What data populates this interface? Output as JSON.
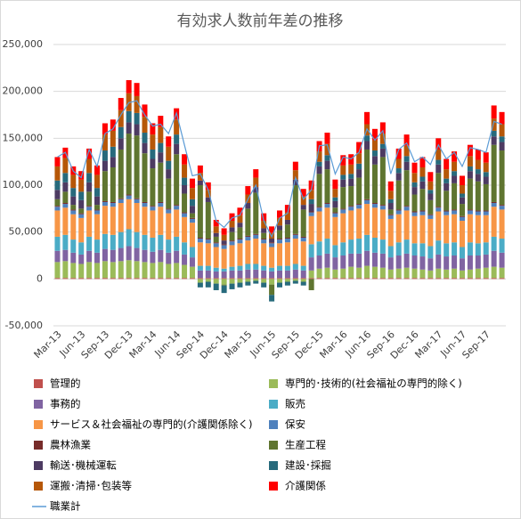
{
  "chart_data": {
    "type": "stacked-bar",
    "title": "有効求人数前年差の推移",
    "categories": [
      "Mar-13",
      null,
      null,
      "Jun-13",
      null,
      null,
      "Sep-13",
      null,
      null,
      "Dec-13",
      null,
      null,
      "Mar-14",
      null,
      null,
      "Jun-14",
      null,
      null,
      "Sep-14",
      null,
      null,
      "Dec-14",
      null,
      null,
      "Mar-15",
      null,
      null,
      "Jun-15",
      null,
      null,
      "Sep-15",
      null,
      null,
      "Dec-15",
      null,
      null,
      "Mar-16",
      null,
      null,
      "Jun-16",
      null,
      null,
      "Sep-16",
      null,
      null,
      "Dec-16",
      null,
      null,
      "Mar-17",
      null,
      null,
      "Jun-17",
      null,
      null,
      "Sep-17",
      null,
      null
    ],
    "ylim": [
      -50000,
      250000
    ],
    "yticks": [
      {
        "value": -50000,
        "label": "-50,000"
      },
      0,
      {
        "value": 50000,
        "label": "50,000"
      },
      {
        "value": 100000,
        "label": "100,000"
      },
      {
        "value": 150000,
        "label": "150,000"
      },
      {
        "value": 200000,
        "label": "200,000"
      },
      {
        "value": 250000,
        "label": "250,000"
      }
    ],
    "grid": true,
    "series": [
      {
        "name": "管理的",
        "color": "#c0504d",
        "values": [
          1000,
          1000,
          1000,
          1000,
          1000,
          1000,
          1000,
          1000,
          1000,
          1000,
          1000,
          1000,
          1000,
          1000,
          1000,
          1000,
          1000,
          1000,
          1000,
          1000,
          1000,
          1000,
          1000,
          1000,
          1000,
          1000,
          1000,
          1000,
          1000,
          1000,
          1000,
          1000,
          1000,
          1000,
          1000,
          1000,
          1000,
          1000,
          1000,
          1000,
          1000,
          1000,
          1000,
          1000,
          1000,
          1000,
          1000,
          1000,
          1000,
          1000,
          1000,
          1000,
          1000,
          1000,
          1000,
          1000,
          1000
        ]
      },
      {
        "name": "専門的･技術的(社会福祉の専門的除く)",
        "color": "#9bbb59",
        "values": [
          17000,
          18000,
          16000,
          15000,
          17000,
          16000,
          18000,
          17000,
          18000,
          19000,
          18000,
          17000,
          16000,
          17000,
          15000,
          16000,
          14000,
          12000,
          -4000,
          -3000,
          -5000,
          -6000,
          -5000,
          -4000,
          -3000,
          -2000,
          -4000,
          -6000,
          -4000,
          -3000,
          -2000,
          -3000,
          8000,
          10000,
          11000,
          9000,
          10000,
          12000,
          11000,
          13000,
          12000,
          11000,
          9000,
          10000,
          11000,
          10000,
          9000,
          8000,
          10000,
          9000,
          10000,
          8000,
          9000,
          10000,
          11000,
          12000,
          11000
        ]
      },
      {
        "name": "事務的",
        "color": "#8064a2",
        "values": [
          12000,
          12000,
          11000,
          10000,
          12000,
          11000,
          13000,
          13000,
          14000,
          15000,
          14000,
          13000,
          12000,
          13000,
          12000,
          13000,
          11000,
          10000,
          8000,
          8000,
          7000,
          7000,
          8000,
          8000,
          9000,
          9000,
          8000,
          7000,
          8000,
          8000,
          9000,
          8000,
          14000,
          14000,
          15000,
          13000,
          14000,
          14000,
          15000,
          16000,
          15000,
          15000,
          13000,
          14000,
          15000,
          14000,
          14000,
          13000,
          15000,
          14000,
          14000,
          13000,
          15000,
          14000,
          14000,
          17000,
          16000
        ]
      },
      {
        "name": "販売",
        "color": "#4bacc6",
        "values": [
          15000,
          16000,
          14000,
          13000,
          15000,
          14000,
          16000,
          16000,
          17000,
          18000,
          17000,
          16000,
          15000,
          16000,
          14000,
          15000,
          13000,
          11000,
          5000,
          5000,
          4000,
          3000,
          4000,
          5000,
          6000,
          6000,
          5000,
          4000,
          5000,
          5000,
          6000,
          5000,
          14000,
          15000,
          16000,
          13000,
          14000,
          15000,
          16000,
          17000,
          16000,
          15000,
          12000,
          14000,
          15000,
          13000,
          14000,
          13000,
          15000,
          14000,
          14000,
          12000,
          14000,
          13000,
          13000,
          15000,
          15000
        ]
      },
      {
        "name": "サービス＆社会福祉の専門的(介護関係除く)",
        "color": "#f79646",
        "values": [
          28000,
          29000,
          27000,
          26000,
          28000,
          27000,
          30000,
          30000,
          31000,
          32000,
          31000,
          30000,
          29000,
          30000,
          28000,
          29000,
          27000,
          26000,
          25000,
          24000,
          22000,
          21000,
          23000,
          24000,
          25000,
          27000,
          24000,
          22000,
          24000,
          25000,
          27000,
          26000,
          30000,
          32000,
          33000,
          30000,
          31000,
          31000,
          32000,
          33000,
          32000,
          32000,
          29000,
          30000,
          31000,
          29000,
          30000,
          29000,
          31000,
          30000,
          30000,
          28000,
          30000,
          30000,
          29000,
          32000,
          31000
        ]
      },
      {
        "name": "保安",
        "color": "#4f81bd",
        "values": [
          4000,
          4000,
          4000,
          4000,
          4000,
          4000,
          4000,
          4000,
          4000,
          4000,
          4000,
          4000,
          4000,
          4000,
          4000,
          4000,
          4000,
          4000,
          4000,
          4000,
          4000,
          4000,
          4000,
          4000,
          4000,
          4000,
          4000,
          4000,
          4000,
          4000,
          4000,
          4000,
          4000,
          4000,
          4000,
          4000,
          4000,
          4000,
          4000,
          4000,
          4000,
          4000,
          4000,
          4000,
          4000,
          4000,
          4000,
          4000,
          4000,
          4000,
          4000,
          4000,
          4000,
          4000,
          4000,
          4000,
          4000
        ]
      },
      {
        "name": "農林漁業",
        "color": "#772c2a",
        "values": [
          1000,
          1000,
          1000,
          1000,
          1000,
          1000,
          1000,
          1000,
          1000,
          1000,
          1000,
          1000,
          1000,
          1000,
          1000,
          1000,
          1000,
          1000,
          1000,
          1000,
          1000,
          1000,
          1000,
          1000,
          1000,
          1000,
          1000,
          1000,
          1000,
          1000,
          1000,
          1000,
          1000,
          1000,
          1000,
          1000,
          1000,
          1000,
          1000,
          1000,
          1000,
          1000,
          1000,
          1000,
          1000,
          1000,
          1000,
          1000,
          1000,
          1000,
          1000,
          1000,
          1000,
          1000,
          1000,
          1000,
          1000
        ]
      },
      {
        "name": "生産工程",
        "color": "#5f7530",
        "values": [
          7000,
          12000,
          5000,
          5000,
          15000,
          5000,
          32000,
          37000,
          52000,
          65000,
          67000,
          52000,
          40000,
          42000,
          32000,
          54000,
          20000,
          5000,
          56000,
          39000,
          6000,
          -1000,
          9000,
          12000,
          29000,
          44000,
          6000,
          -11000,
          9000,
          14000,
          52000,
          29000,
          -12000,
          35000,
          36000,
          5000,
          23000,
          21000,
          28000,
          53000,
          41000,
          51000,
          5000,
          31000,
          38000,
          18000,
          23000,
          15000,
          36000,
          21000,
          28000,
          13000,
          33000,
          31000,
          28000,
          61000,
          58000
        ]
      },
      {
        "name": "輸送･機械運転",
        "color": "#4d3b62",
        "values": [
          10000,
          10000,
          9000,
          9000,
          10000,
          9000,
          11000,
          11000,
          12000,
          12000,
          12000,
          11000,
          10000,
          11000,
          10000,
          11000,
          9000,
          8000,
          5000,
          5000,
          4000,
          4000,
          5000,
          5000,
          6000,
          6000,
          5000,
          4000,
          5000,
          5000,
          6000,
          5000,
          8000,
          8000,
          9000,
          7000,
          8000,
          8000,
          9000,
          9000,
          9000,
          9000,
          7000,
          8000,
          9000,
          8000,
          8000,
          7000,
          9000,
          8000,
          8000,
          7000,
          8000,
          8000,
          8000,
          9000,
          9000
        ]
      },
      {
        "name": "建設･採掘",
        "color": "#276a7c",
        "values": [
          10000,
          10000,
          9000,
          9000,
          10000,
          9000,
          11000,
          11000,
          12000,
          12000,
          12000,
          11000,
          10000,
          10000,
          9000,
          10000,
          8000,
          7000,
          -5000,
          -6000,
          -7000,
          -8000,
          -6000,
          -5000,
          -4000,
          -3000,
          -5000,
          -7000,
          -5000,
          -4000,
          -3000,
          -4000,
          5000,
          5000,
          6000,
          4000,
          5000,
          5000,
          6000,
          6000,
          6000,
          5000,
          4000,
          5000,
          6000,
          5000,
          5000,
          4000,
          5000,
          5000,
          5000,
          4000,
          5000,
          5000,
          5000,
          6000,
          6000
        ]
      },
      {
        "name": "運搬･清掃･包装等",
        "color": "#b65708",
        "values": [
          15000,
          16000,
          14000,
          13000,
          15000,
          14000,
          17000,
          17000,
          18000,
          19000,
          18000,
          17000,
          16000,
          17000,
          15000,
          16000,
          14000,
          12000,
          8000,
          8000,
          7000,
          6000,
          7000,
          8000,
          9000,
          10000,
          8000,
          6000,
          8000,
          8000,
          10000,
          9000,
          10000,
          11000,
          12000,
          9000,
          10000,
          10000,
          11000,
          12000,
          11000,
          11000,
          9000,
          10000,
          11000,
          10000,
          10000,
          9000,
          11000,
          10000,
          10000,
          9000,
          11000,
          10000,
          10000,
          13000,
          13000
        ]
      },
      {
        "name": "介護関係",
        "color": "#ff0000",
        "values": [
          10000,
          11000,
          9000,
          9000,
          11000,
          10000,
          12000,
          12000,
          13000,
          14000,
          14000,
          13000,
          12000,
          12000,
          11000,
          12000,
          11000,
          10000,
          8000,
          8000,
          7000,
          7000,
          8000,
          8000,
          9000,
          9000,
          8000,
          7000,
          8000,
          8000,
          9000,
          8000,
          10000,
          11000,
          12000,
          10000,
          11000,
          11000,
          12000,
          13000,
          12000,
          12000,
          10000,
          11000,
          12000,
          11000,
          11000,
          10000,
          12000,
          11000,
          11000,
          10000,
          12000,
          11000,
          11000,
          14000,
          13000
        ]
      },
      {
        "name": "職業計",
        "color": "#5b9bd5",
        "type": "line",
        "values": [
          130000,
          135000,
          115000,
          108000,
          138000,
          120000,
          155000,
          160000,
          175000,
          188000,
          190000,
          175000,
          163000,
          165000,
          155000,
          177000,
          143000,
          110000,
          112000,
          95000,
          62000,
          55000,
          65000,
          68000,
          85000,
          100000,
          62000,
          45000,
          65000,
          70000,
          108000,
          85000,
          95000,
          142000,
          143000,
          112000,
          130000,
          128000,
          135000,
          160000,
          148000,
          158000,
          112000,
          138000,
          145000,
          125000,
          130000,
          122000,
          143000,
          128000,
          135000,
          120000,
          140000,
          138000,
          135000,
          168000,
          165000
        ]
      }
    ]
  }
}
